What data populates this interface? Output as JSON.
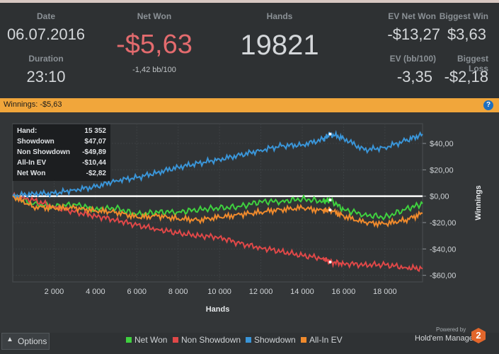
{
  "stats": {
    "date_label": "Date",
    "date": "06.07.2016",
    "duration_label": "Duration",
    "duration": "23:10",
    "net_won_label": "Net Won",
    "net_won": "-$5,63",
    "bb_per_100": "-1,42 bb/100",
    "hands_label": "Hands",
    "hands": "19821",
    "ev_net_won_label": "EV Net Won",
    "ev_net_won": "-$13,27",
    "biggest_win_label": "Biggest Win",
    "biggest_win": "$3,63",
    "ev_bb_label": "EV (bb/100)",
    "ev_bb": "-3,35",
    "biggest_loss_label": "Biggest Loss",
    "biggest_loss": "-$2,18"
  },
  "winnings_bar": {
    "title": "Winnings: -$5,63",
    "help": "?"
  },
  "tooltip": {
    "rows": [
      {
        "k": "Hand:",
        "v": "15 352"
      },
      {
        "k": "Showdown",
        "v": "$47,07"
      },
      {
        "k": "Non Showdown",
        "v": "-$49,89"
      },
      {
        "k": "All-In EV",
        "v": "-$10,44"
      },
      {
        "k": "Net Won",
        "v": "-$2,82"
      }
    ]
  },
  "colors": {
    "net_won": "#3fd13f",
    "non_showdown": "#e04848",
    "showdown": "#3a95d8",
    "allin_ev": "#f08a2c",
    "bar": "#f1a63b"
  },
  "chart_data": {
    "type": "line",
    "title": "",
    "xlabel": "Hands",
    "ylabel": "Winnings",
    "xlim": [
      0,
      19821
    ],
    "ylim": [
      -65,
      55
    ],
    "x_ticks": [
      2000,
      4000,
      6000,
      8000,
      10000,
      12000,
      14000,
      16000,
      18000
    ],
    "x_tick_labels": [
      "2 000",
      "4 000",
      "6 000",
      "8 000",
      "10 000",
      "12 000",
      "14 000",
      "16 000",
      "18 000"
    ],
    "y_ticks": [
      40,
      20,
      0,
      -20,
      -40,
      -60
    ],
    "y_tick_labels": [
      "$40,00",
      "$20,00",
      "$0,00",
      "-$20,00",
      "-$40,00",
      "-$60,00"
    ],
    "x": [
      0,
      1000,
      2000,
      3000,
      4000,
      5000,
      6000,
      7000,
      8000,
      9000,
      10000,
      11000,
      12000,
      13000,
      14000,
      15000,
      15352,
      16000,
      17000,
      18000,
      19000,
      19821
    ],
    "series": [
      {
        "name": "Net Won",
        "values": [
          0,
          -6,
          -8,
          -6,
          -10,
          -9,
          -14,
          -12,
          -12,
          -10,
          -9,
          -8,
          -4,
          -4,
          -2,
          -4,
          -2.8,
          -10,
          -14,
          -16,
          -10,
          -5.6
        ]
      },
      {
        "name": "Non Showdown",
        "values": [
          0,
          -3,
          -8,
          -12,
          -15,
          -18,
          -22,
          -25,
          -28,
          -30,
          -31,
          -36,
          -39,
          -42,
          -45,
          -47,
          -49.9,
          -51,
          -52,
          -52,
          -54,
          -55
        ]
      },
      {
        "name": "Showdown",
        "values": [
          0,
          2,
          2,
          5,
          7,
          12,
          14,
          18,
          22,
          25,
          28,
          31,
          35,
          38,
          39,
          43,
          47.1,
          44,
          35,
          37,
          42,
          47
        ]
      },
      {
        "name": "All-In EV",
        "values": [
          0,
          -8,
          -9,
          -9,
          -11,
          -12,
          -16,
          -15,
          -17,
          -18,
          -16,
          -14,
          -12,
          -10,
          -9,
          -11,
          -10.4,
          -15,
          -20,
          -21,
          -18,
          -13
        ]
      }
    ],
    "markers_at": 15352,
    "legend": [
      "Net Won",
      "Non Showdown",
      "Showdown",
      "All-In EV"
    ],
    "legend_position": "bottom"
  },
  "footer": {
    "options": "Options",
    "options_icon": "caret-up-icon",
    "powered_by": "Powered by",
    "brand": "Hold'em Manager",
    "brand_num": "2"
  }
}
